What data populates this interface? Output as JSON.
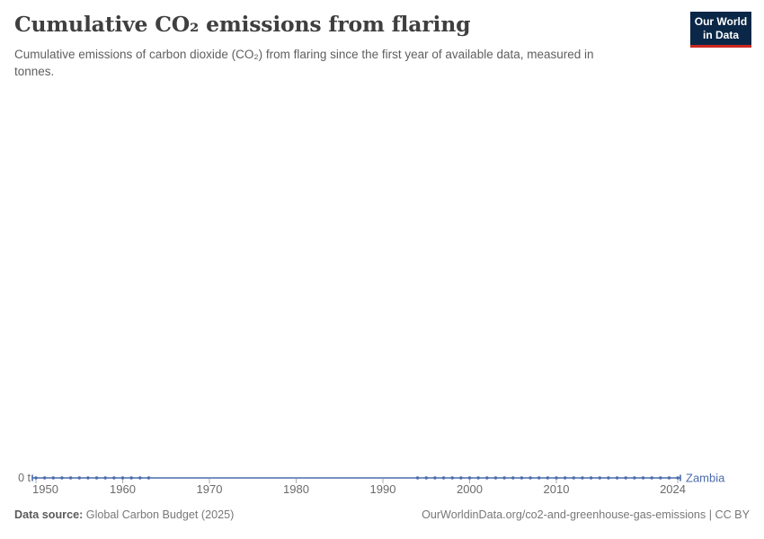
{
  "header": {
    "title": "Cumulative CO₂ emissions from flaring",
    "subtitle_line1": "Cumulative emissions of carbon dioxide (CO₂) from flaring since the first year of available data, measured in",
    "subtitle_line2": "tonnes.",
    "logo": {
      "line1": "Our World",
      "line2": "in Data"
    }
  },
  "footer": {
    "source_label": "Data source:",
    "source_value": "Global Carbon Budget (2025)",
    "rights": "OurWorldinData.org/co2-and-greenhouse-gas-emissions | CC BY"
  },
  "colors": {
    "series_blue": "#4a6bab",
    "axis_tick": "#adadad",
    "tick_label": "#6b6b6b",
    "zero_label": "#6b6b6b"
  },
  "chart_data": {
    "type": "line",
    "title": "Cumulative CO₂ emissions from flaring",
    "ylabel": "tonnes",
    "unit": "t",
    "zero_label": "0 t",
    "grid": false,
    "legend_position": "line-end",
    "x_range": [
      1950,
      2024
    ],
    "x_ticks": [
      1950,
      1960,
      1970,
      1980,
      1990,
      2000,
      2010,
      2024
    ],
    "y_range_shown": [
      0,
      0
    ],
    "series": [
      {
        "name": "Zambia",
        "gap_connected": true,
        "segments": [
          {
            "years": [
              1950,
              1951,
              1952,
              1953,
              1954,
              1955,
              1956,
              1957,
              1958,
              1959,
              1960,
              1961,
              1962,
              1963
            ],
            "values": [
              0,
              0,
              0,
              0,
              0,
              0,
              0,
              0,
              0,
              0,
              0,
              0,
              0,
              0
            ]
          },
          {
            "years": [
              1994,
              1995,
              1996,
              1997,
              1998,
              1999,
              2000,
              2001,
              2002,
              2003,
              2004,
              2005,
              2006,
              2007,
              2008,
              2009,
              2010,
              2011,
              2012,
              2013,
              2014,
              2015,
              2016,
              2017,
              2018,
              2019,
              2020,
              2021,
              2022,
              2023,
              2024
            ],
            "values": [
              0,
              0,
              0,
              0,
              0,
              0,
              0,
              0,
              0,
              0,
              0,
              0,
              0,
              0,
              0,
              0,
              0,
              0,
              0,
              0,
              0,
              0,
              0,
              0,
              0,
              0,
              0,
              0,
              0,
              0,
              0
            ]
          }
        ]
      }
    ]
  }
}
